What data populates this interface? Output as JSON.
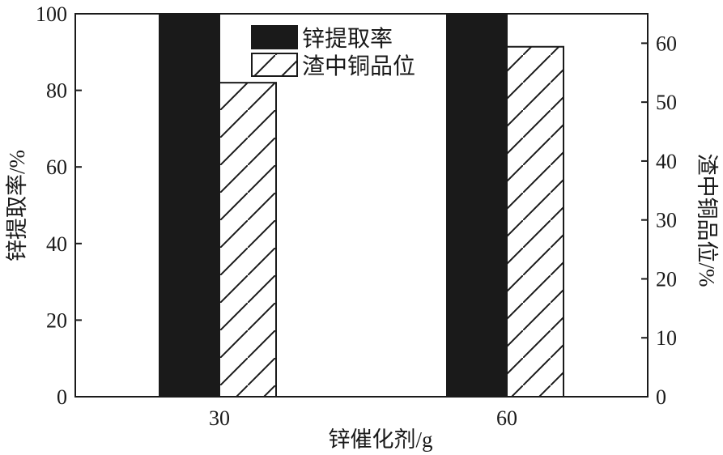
{
  "chart_data": {
    "type": "bar",
    "categories": [
      "30",
      "60"
    ],
    "xlabel": "锌催化剂/g",
    "ylabel": "锌提取率/%",
    "ylabel_right": "渣中铜品位/%",
    "ylim": [
      0,
      100
    ],
    "ylim_right": [
      0,
      65
    ],
    "yticks": [
      0,
      20,
      40,
      60,
      80,
      100
    ],
    "yticks_right": [
      0,
      10,
      20,
      30,
      40,
      50,
      60
    ],
    "legend_position": "top-center",
    "series": [
      {
        "name": "锌提取率",
        "axis": "left",
        "values": [
          100,
          100
        ],
        "fill": "solid",
        "color": "#1a1a1a"
      },
      {
        "name": "渣中铜品位",
        "axis": "right",
        "values": [
          53.3,
          59.4
        ],
        "fill": "hatched",
        "color": "#ffffff"
      }
    ]
  }
}
